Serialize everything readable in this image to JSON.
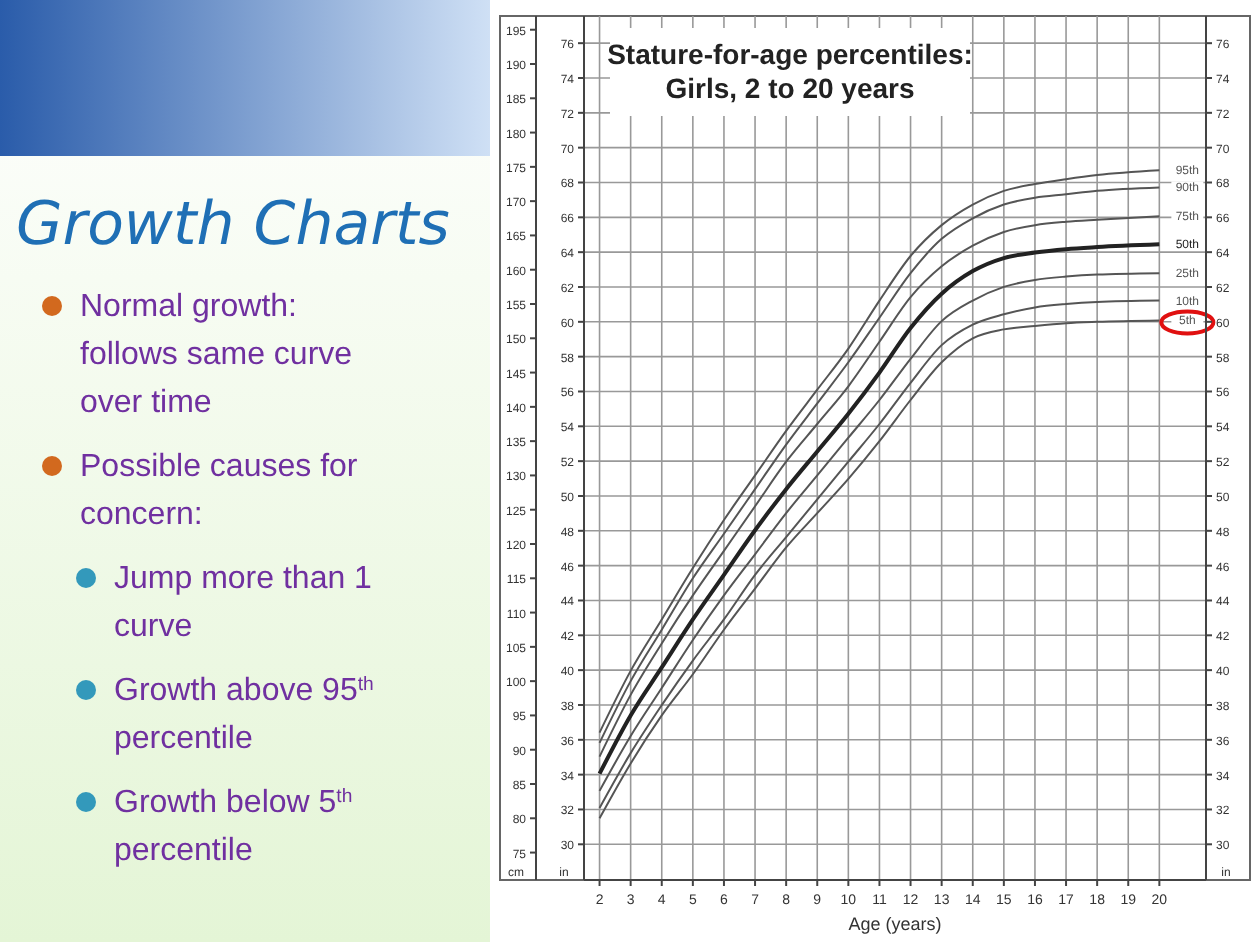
{
  "chart_data": {
    "type": "line",
    "title": "Stature-for-age percentiles:\nGirls, 2 to 20 years",
    "xlabel": "Age (years)",
    "ylabel": "cm",
    "y2label": "in",
    "y3label": "in",
    "annotations": [
      "Growth Charts",
      "Normal growth: follows same curve over time",
      "Possible causes for concern:",
      "Jump more than 1 curve",
      "Growth above 95$^{th}$ percentile",
      "Growth below 5$^{th}$ percentile"
    ],
    "x": [
      2,
      3,
      4,
      5,
      6,
      7,
      8,
      9,
      10,
      11,
      12,
      13,
      14,
      15,
      16,
      17,
      18,
      20
    ],
    "xlim": [
      1.5,
      21.5
    ],
    "xticks": [
      2,
      3,
      4,
      5,
      6,
      7,
      8,
      9,
      10,
      11,
      12,
      13,
      14,
      15,
      16,
      17,
      18,
      19,
      20
    ],
    "ylim": [
      71,
      197
    ],
    "yticks": [
      75,
      80,
      85,
      90,
      95,
      100,
      105,
      110,
      115,
      120,
      125,
      130,
      135,
      140,
      145,
      150,
      155,
      160,
      165,
      170,
      175,
      180,
      185,
      190,
      195
    ],
    "y2lim": [
      27.95,
      77.56
    ],
    "y2ticks": [
      30,
      32,
      34,
      36,
      38,
      40,
      42,
      44,
      46,
      48,
      50,
      52,
      54,
      56,
      58,
      60,
      62,
      64,
      66,
      68,
      70,
      72,
      74,
      76
    ],
    "y3lim": [
      27.95,
      77.56
    ],
    "y3ticks": [
      30,
      32,
      34,
      36,
      38,
      40,
      42,
      44,
      46,
      48,
      50,
      52,
      54,
      56,
      58,
      60,
      62,
      64,
      66,
      68,
      70,
      72,
      74,
      76
    ],
    "grid": true,
    "marker": "none",
    "series": [
      {
        "name": "95th",
        "color": "#555555",
        "values": [
          92.5,
          101.5,
          109,
          116.5,
          123.5,
          130,
          136.5,
          142.5,
          148.5,
          155.5,
          162,
          166.5,
          169.5,
          171.5,
          172.5,
          173.2,
          173.8,
          174.5
        ]
      },
      {
        "name": "90th",
        "color": "#555555",
        "values": [
          91,
          100,
          107.5,
          115,
          121.5,
          128,
          134.5,
          140.5,
          146.5,
          153,
          159.5,
          164.5,
          167.5,
          169.5,
          170.5,
          171,
          171.5,
          172
        ]
      },
      {
        "name": "75th",
        "color": "#555555",
        "values": [
          89,
          98,
          105.5,
          112.5,
          119,
          125.5,
          132,
          137.5,
          143,
          149.5,
          156,
          160.5,
          163.5,
          165.5,
          166.5,
          167,
          167.3,
          167.8
        ]
      },
      {
        "name": "50th",
        "color": "#222222",
        "values": [
          86.5,
          95,
          102,
          109,
          115.5,
          122,
          128,
          133.5,
          139,
          145,
          151.5,
          156.5,
          159.8,
          161.7,
          162.5,
          163,
          163.3,
          163.7
        ]
      },
      {
        "name": "25th",
        "color": "#555555",
        "values": [
          84,
          92,
          99,
          106,
          112.5,
          118.5,
          124.5,
          130,
          135.5,
          141,
          147,
          152.5,
          155.5,
          157.5,
          158.5,
          159,
          159.3,
          159.5
        ]
      },
      {
        "name": "10th",
        "color": "#555555",
        "values": [
          81.5,
          89.5,
          96.5,
          103,
          109,
          115.5,
          121,
          126.5,
          132,
          137.5,
          143.5,
          149,
          152,
          153.5,
          154.5,
          155,
          155.3,
          155.5
        ]
      },
      {
        "name": "5th",
        "color": "#555555",
        "values": [
          80,
          88,
          95,
          101,
          107.5,
          113.5,
          119.5,
          124.5,
          129.5,
          135,
          141,
          146.5,
          150,
          151.3,
          151.8,
          152.2,
          152.4,
          152.6
        ]
      }
    ]
  }
}
